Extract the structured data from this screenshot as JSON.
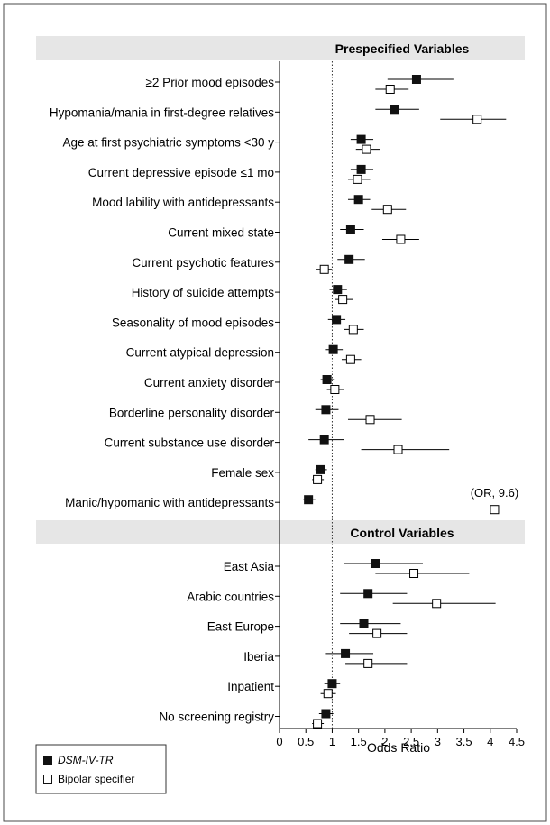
{
  "chart_data": {
    "type": "forest",
    "xlabel": "Odds Ratio",
    "xlim": [
      0,
      4.5
    ],
    "xticks": [
      0,
      0.5,
      1,
      1.5,
      2,
      2.5,
      3,
      3.5,
      4,
      4.5
    ],
    "xtick_labels": [
      "0",
      "0.5",
      "1",
      "1.5",
      "2",
      "2.5",
      "3",
      "3.5",
      "4",
      "4.5"
    ],
    "reference_line": 1,
    "legend_position": "bottom-left",
    "legend": [
      {
        "key": "dsm",
        "label": "DSM-IV-TR",
        "marker": "filled-square",
        "italic": true
      },
      {
        "key": "bip",
        "label": "Bipolar specifier",
        "marker": "open-square",
        "italic": false
      }
    ],
    "sections": [
      {
        "title": "Prespecified Variables",
        "rows": [
          {
            "label": "≥2 Prior mood episodes",
            "dsm": {
              "or": 2.6,
              "lo": 2.05,
              "hi": 3.3
            },
            "bip": {
              "or": 2.1,
              "lo": 1.82,
              "hi": 2.45
            }
          },
          {
            "label": "Hypomania/mania in first-degree relatives",
            "dsm": {
              "or": 2.18,
              "lo": 1.82,
              "hi": 2.65
            },
            "bip": {
              "or": 3.75,
              "lo": 3.05,
              "hi": 4.3
            }
          },
          {
            "label": "Age at first psychiatric symptoms <30 y",
            "dsm": {
              "or": 1.55,
              "lo": 1.35,
              "hi": 1.78
            },
            "bip": {
              "or": 1.65,
              "lo": 1.45,
              "hi": 1.9
            }
          },
          {
            "label": "Current depressive episode ≤1 mo",
            "dsm": {
              "or": 1.55,
              "lo": 1.35,
              "hi": 1.78
            },
            "bip": {
              "or": 1.48,
              "lo": 1.3,
              "hi": 1.72
            }
          },
          {
            "label": "Mood lability with antidepressants",
            "dsm": {
              "or": 1.5,
              "lo": 1.3,
              "hi": 1.72
            },
            "bip": {
              "or": 2.05,
              "lo": 1.75,
              "hi": 2.4
            }
          },
          {
            "label": "Current mixed state",
            "dsm": {
              "or": 1.35,
              "lo": 1.15,
              "hi": 1.6
            },
            "bip": {
              "or": 2.3,
              "lo": 1.95,
              "hi": 2.65
            }
          },
          {
            "label": "Current psychotic features",
            "dsm": {
              "or": 1.32,
              "lo": 1.1,
              "hi": 1.62
            },
            "bip": {
              "or": 0.85,
              "lo": 0.7,
              "hi": 1.0
            }
          },
          {
            "label": "History of suicide attempts",
            "dsm": {
              "or": 1.1,
              "lo": 0.95,
              "hi": 1.28
            },
            "bip": {
              "or": 1.2,
              "lo": 1.05,
              "hi": 1.4
            }
          },
          {
            "label": "Seasonality of mood episodes",
            "dsm": {
              "or": 1.08,
              "lo": 0.92,
              "hi": 1.25
            },
            "bip": {
              "or": 1.4,
              "lo": 1.22,
              "hi": 1.6
            }
          },
          {
            "label": "Current atypical depression",
            "dsm": {
              "or": 1.02,
              "lo": 0.88,
              "hi": 1.2
            },
            "bip": {
              "or": 1.35,
              "lo": 1.18,
              "hi": 1.55
            }
          },
          {
            "label": "Current anxiety disorder",
            "dsm": {
              "or": 0.9,
              "lo": 0.78,
              "hi": 1.03
            },
            "bip": {
              "or": 1.05,
              "lo": 0.9,
              "hi": 1.22
            }
          },
          {
            "label": "Borderline personality disorder",
            "dsm": {
              "or": 0.88,
              "lo": 0.68,
              "hi": 1.12
            },
            "bip": {
              "or": 1.72,
              "lo": 1.3,
              "hi": 2.32
            }
          },
          {
            "label": "Current substance use disorder",
            "dsm": {
              "or": 0.85,
              "lo": 0.55,
              "hi": 1.22
            },
            "bip": {
              "or": 2.25,
              "lo": 1.55,
              "hi": 3.22
            }
          },
          {
            "label": "Female sex",
            "dsm": {
              "or": 0.78,
              "lo": 0.68,
              "hi": 0.9
            },
            "bip": {
              "or": 0.72,
              "lo": 0.62,
              "hi": 0.84
            }
          },
          {
            "label": "Manic/hypomanic with antidepressants",
            "dsm": {
              "or": 0.55,
              "lo": 0.45,
              "hi": 0.68
            },
            "bip": {
              "or": 9.6,
              "marker_at": 4.08,
              "note": "(OR, 9.6)"
            }
          }
        ]
      },
      {
        "title": "Control Variables",
        "rows": [
          {
            "label": "East Asia",
            "dsm": {
              "or": 1.82,
              "lo": 1.22,
              "hi": 2.72
            },
            "bip": {
              "or": 2.55,
              "lo": 1.82,
              "hi": 3.6
            }
          },
          {
            "label": "Arabic countries",
            "dsm": {
              "or": 1.68,
              "lo": 1.15,
              "hi": 2.42
            },
            "bip": {
              "or": 2.98,
              "lo": 2.15,
              "hi": 4.1
            }
          },
          {
            "label": "East Europe",
            "dsm": {
              "or": 1.6,
              "lo": 1.15,
              "hi": 2.3
            },
            "bip": {
              "or": 1.85,
              "lo": 1.32,
              "hi": 2.42
            }
          },
          {
            "label": "Iberia",
            "dsm": {
              "or": 1.25,
              "lo": 0.88,
              "hi": 1.78
            },
            "bip": {
              "or": 1.68,
              "lo": 1.25,
              "hi": 2.42
            }
          },
          {
            "label": "Inpatient",
            "dsm": {
              "or": 1.0,
              "lo": 0.85,
              "hi": 1.15
            },
            "bip": {
              "or": 0.92,
              "lo": 0.78,
              "hi": 1.07
            }
          },
          {
            "label": "No screening registry",
            "dsm": {
              "or": 0.88,
              "lo": 0.75,
              "hi": 1.02
            },
            "bip": {
              "or": 0.72,
              "lo": 0.62,
              "hi": 0.84
            }
          }
        ]
      }
    ]
  }
}
